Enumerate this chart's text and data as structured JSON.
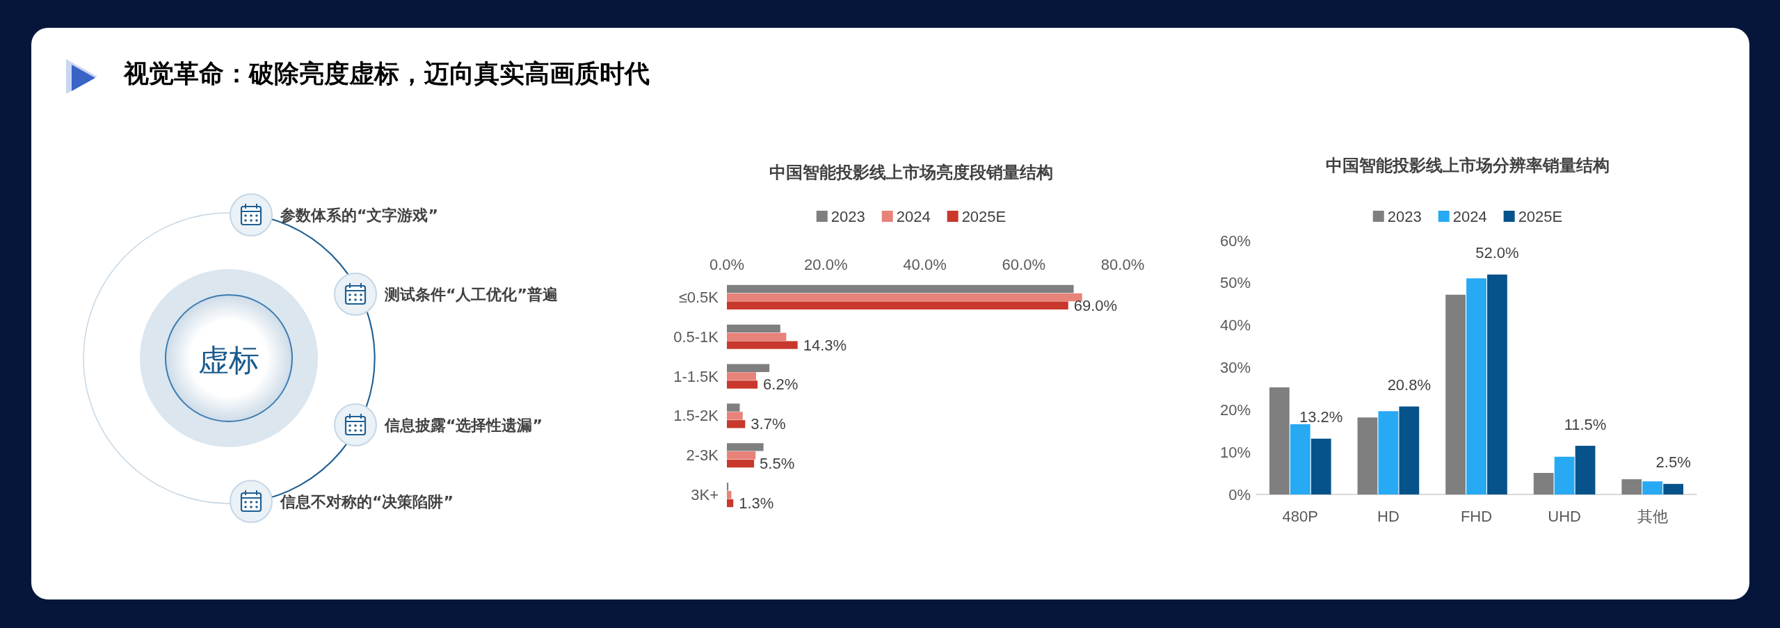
{
  "chart_data": [
    {
      "type": "other",
      "title": "视觉革命：破除亮度虚标，迈向真实高画质时代",
      "annotations": [
        "虚标",
        "参数体系的“文字游戏”",
        "测试条件“人工优化”普遍",
        "信息披露“选择性遗漏”",
        "信息不对称的“决策陷阱”"
      ]
    },
    {
      "type": "bar",
      "orientation": "horizontal",
      "title": "中国智能投影线上市场亮度段销量结构",
      "categories": [
        "≤0.5K",
        "0.5-1K",
        "1-1.5K",
        "1.5-2K",
        "2-3K",
        "3K+"
      ],
      "series": [
        {
          "name": "2023",
          "color": "#7f7f7f",
          "values": [
            70.1,
            10.8,
            8.6,
            2.6,
            7.4,
            0.3
          ]
        },
        {
          "name": "2024",
          "color": "#e8837a",
          "values": [
            71.8,
            12.0,
            5.9,
            3.2,
            5.8,
            0.9
          ]
        },
        {
          "name": "2025E",
          "color": "#c8382c",
          "values": [
            69.0,
            14.3,
            6.2,
            3.7,
            5.5,
            1.3
          ],
          "value_labels": [
            "69.0%",
            "14.3%",
            "6.2%",
            "3.7%",
            "5.5%",
            "1.3%"
          ]
        }
      ],
      "xlim": [
        0,
        80
      ],
      "xticks": [
        {
          "value": 0,
          "label": "0.0%"
        },
        {
          "value": 20,
          "label": "20.0%"
        },
        {
          "value": 40,
          "label": "40.0%"
        },
        {
          "value": 60,
          "label": "60.0%"
        },
        {
          "value": 80,
          "label": "80.0%"
        }
      ],
      "grid": false,
      "legend": "top"
    },
    {
      "type": "bar",
      "title": "中国智能投影线上市场分辨率销量结构",
      "categories": [
        "480P",
        "HD",
        "FHD",
        "UHD",
        "其他"
      ],
      "series": [
        {
          "name": "2023",
          "color": "#7f7f7f",
          "values": [
            25.3,
            18.2,
            47.2,
            5.1,
            3.6
          ]
        },
        {
          "name": "2024",
          "color": "#27a9f3",
          "values": [
            16.6,
            19.7,
            51.1,
            8.9,
            3.1
          ]
        },
        {
          "name": "2025E",
          "color": "#06528a",
          "values": [
            13.2,
            20.8,
            52.0,
            11.5,
            2.5
          ],
          "value_labels": [
            "13.2%",
            "20.8%",
            "52.0%",
            "11.5%",
            "2.5%"
          ]
        }
      ],
      "ylim": [
        0,
        60
      ],
      "yticks": [
        {
          "value": 0,
          "label": "0%"
        },
        {
          "value": 10,
          "label": "10%"
        },
        {
          "value": 20,
          "label": "20%"
        },
        {
          "value": 30,
          "label": "30%"
        },
        {
          "value": 40,
          "label": "40%"
        },
        {
          "value": 50,
          "label": "50%"
        },
        {
          "value": 60,
          "label": "60%"
        }
      ],
      "grid": false,
      "legend": "top"
    }
  ]
}
